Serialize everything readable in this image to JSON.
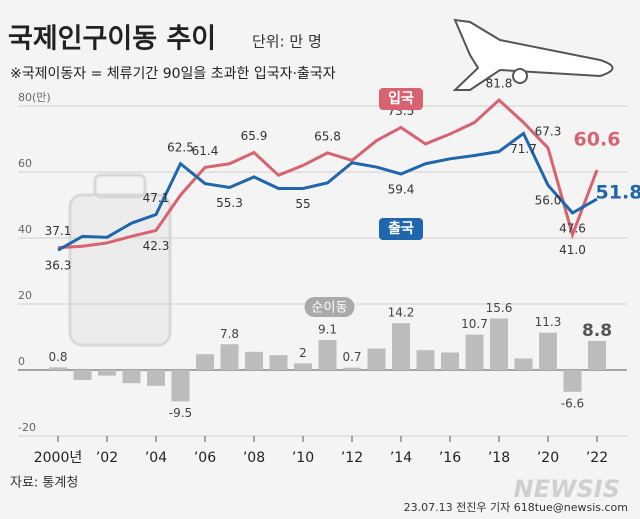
{
  "title": "국제인구이동 추이",
  "unit": "단위: 만 명",
  "subtitle": "※국제이동자 = 체류기간 90일을 초과한 입국자·출국자",
  "source": "자료: 통계청",
  "credit": "23.07.13 전진우 기자 618tue@newsis.com",
  "watermark": "NEWSIS",
  "chart_data": {
    "type": "line",
    "x": [
      2000,
      2001,
      2002,
      2003,
      2004,
      2005,
      2006,
      2007,
      2008,
      2009,
      2010,
      2011,
      2012,
      2013,
      2014,
      2015,
      2016,
      2017,
      2018,
      2019,
      2020,
      2021,
      2022
    ],
    "xlim": [
      2000,
      2022
    ],
    "xticks": [
      {
        "value": 2000,
        "label": "2000년"
      },
      {
        "value": 2002,
        "label": "’02"
      },
      {
        "value": 2004,
        "label": "’04"
      },
      {
        "value": 2006,
        "label": "’06"
      },
      {
        "value": 2008,
        "label": "’08"
      },
      {
        "value": 2010,
        "label": "’10"
      },
      {
        "value": 2012,
        "label": "’12"
      },
      {
        "value": 2014,
        "label": "’14"
      },
      {
        "value": 2016,
        "label": "’16"
      },
      {
        "value": 2018,
        "label": "’18"
      },
      {
        "value": 2020,
        "label": "’20"
      },
      {
        "value": 2022,
        "label": "’22"
      }
    ],
    "ylim": [
      -20,
      80
    ],
    "yticks": [
      {
        "value": 80,
        "label": "80(만)"
      },
      60,
      40,
      20,
      0,
      -20
    ],
    "grid": true,
    "series": [
      {
        "name": "입국",
        "color": "#d9626f",
        "values": [
          37.1,
          37.5,
          38.5,
          40.5,
          42.3,
          53.0,
          61.4,
          62.5,
          65.9,
          59.0,
          62.0,
          65.8,
          63.5,
          69.5,
          73.5,
          68.5,
          71.5,
          75.0,
          81.8,
          75.0,
          67.3,
          41.0,
          60.6
        ],
        "value_labels": [
          "37.1",
          null,
          null,
          null,
          "42.3",
          null,
          "61.4",
          null,
          "65.9",
          null,
          null,
          "65.8",
          null,
          null,
          "73.5",
          null,
          null,
          null,
          "81.8",
          null,
          "67.3",
          "41.0",
          "60.6"
        ]
      },
      {
        "name": "출국",
        "color": "#1f66ae",
        "values": [
          36.3,
          40.5,
          40.2,
          44.5,
          47.1,
          62.5,
          56.5,
          55.3,
          58.5,
          55.0,
          55.0,
          56.7,
          62.8,
          61.5,
          59.4,
          62.5,
          64.0,
          65.0,
          66.2,
          71.7,
          56.0,
          47.6,
          51.8
        ],
        "value_labels": [
          "36.3",
          null,
          null,
          null,
          "47.1",
          "62.5",
          null,
          "55.3",
          null,
          null,
          "55",
          null,
          null,
          null,
          "59.4",
          null,
          null,
          null,
          null,
          "71.7",
          "56.0",
          "47.6",
          "51.8"
        ]
      },
      {
        "name": "순이동",
        "type": "bar",
        "color": "#bcbcbc",
        "values": [
          0.8,
          -3.0,
          -1.7,
          -4.0,
          -4.8,
          -9.5,
          4.8,
          7.8,
          5.5,
          4.5,
          2.0,
          9.1,
          0.7,
          6.5,
          14.2,
          6.0,
          5.3,
          10.7,
          15.6,
          3.5,
          11.3,
          -6.6,
          8.8
        ],
        "value_labels": [
          "0.8",
          null,
          null,
          null,
          null,
          "-9.5",
          null,
          "7.8",
          null,
          null,
          "2",
          "9.1",
          "0.7",
          null,
          "14.2",
          null,
          null,
          "10.7",
          "15.6",
          null,
          "11.3",
          "-6.6",
          "8.8"
        ]
      }
    ]
  }
}
